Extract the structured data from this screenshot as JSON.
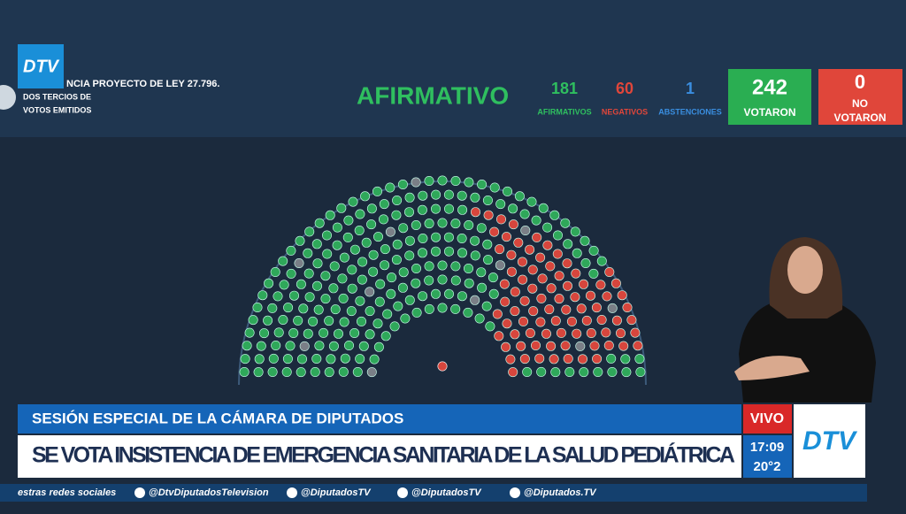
{
  "header": {
    "logo": "DTV",
    "bill": "NCIA PROYECTO DE LEY 27.796.",
    "majority_line1": "DOS TERCIOS DE",
    "majority_line2": "VOTOS EMITIDOS",
    "result": "AFIRMATIVO",
    "counts": [
      {
        "value": "181",
        "label": "AFIRMATIVOS"
      },
      {
        "value": "60",
        "label": "NEGATIVOS"
      },
      {
        "value": "1",
        "label": "ABSTENCIONES"
      }
    ],
    "voted": {
      "value": "242",
      "label": "VOTARON"
    },
    "not_voted": {
      "value": "0",
      "label1": "NO",
      "label2": "VOTARON"
    }
  },
  "lower_third": {
    "kicker": "SESIÓN ESPECIAL DE LA CÁMARA DE DIPUTADOS",
    "headline": "SE VOTA INSISTENCIA DE EMERGENCIA SANITARIA DE LA SALUD PEDIÁTRICA",
    "live": "VIVO",
    "time": "17:09",
    "temp": "20°2",
    "logo": "DTV"
  },
  "ticker": [
    "estras redes sociales",
    "@DtvDiputadosTelevision",
    "@DiputadosTV",
    "@DiputadosTV",
    "@Diputados.TV"
  ]
}
